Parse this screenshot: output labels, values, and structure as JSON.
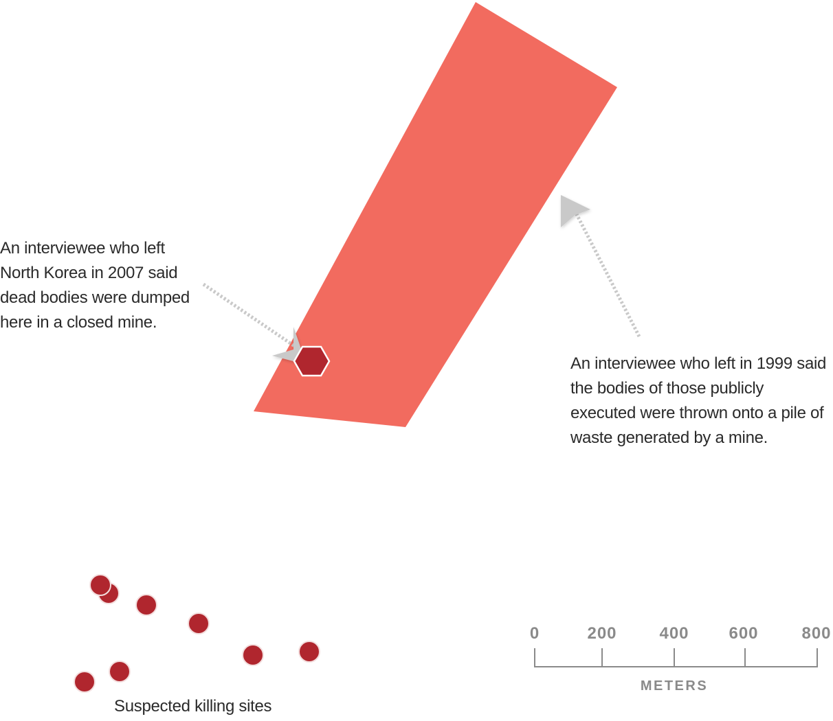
{
  "colors": {
    "site_area": "#f26b5f",
    "site_marker": "#b0262e",
    "marker_outline": "#ffffff",
    "arrow": "#c9c9c9",
    "text": "#2a2a2a",
    "scale": "#8a8a8a"
  },
  "annotations": {
    "left": "An interviewee who left North Korea in 2007 said dead bodies were dumped here in a closed mine.",
    "right": "An interviewee who left in 1999 said the bodies of those publicly executed were thrown onto a pile of waste generated by a mine."
  },
  "legend": {
    "label": "Suspected killing sites",
    "marker_count": 9
  },
  "scale_bar": {
    "unit": "METERS",
    "ticks": [
      "0",
      "200",
      "400",
      "600",
      "800"
    ]
  },
  "icons": {
    "site_area": "mine-waste-polygon",
    "closed_mine": "hexagon-marker-icon",
    "killing_site": "circle-marker-icon",
    "arrow": "dotted-arrow-icon"
  }
}
